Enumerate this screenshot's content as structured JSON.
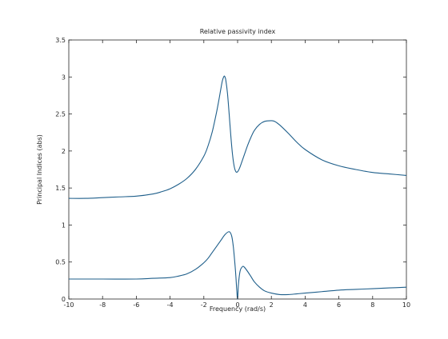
{
  "chart_data": {
    "type": "line",
    "title": "Relative passivity index",
    "xlabel": "Frequency (rad/s)",
    "ylabel": "Principal Indices (abs)",
    "xlim": [
      -10,
      10
    ],
    "ylim": [
      0,
      3.5
    ],
    "xticks": [
      -10,
      -8,
      -6,
      -4,
      -2,
      0,
      2,
      4,
      6,
      8,
      10
    ],
    "yticks": [
      0,
      0.5,
      1,
      1.5,
      2,
      2.5,
      3,
      3.5
    ],
    "xtick_labels": [
      "-10",
      "-8",
      "-6",
      "-4",
      "-2",
      "0",
      "2",
      "4",
      "6",
      "8",
      "10"
    ],
    "ytick_labels": [
      "0",
      "0.5",
      "1",
      "1.5",
      "2",
      "2.5",
      "3",
      "3.5"
    ],
    "grid": false,
    "line_color": "#1f5f8b",
    "series": [
      {
        "x": [
          -10,
          -9,
          -8,
          -7,
          -6,
          -5,
          -4.5,
          -4,
          -3.5,
          -3,
          -2.5,
          -2,
          -1.75,
          -1.5,
          -1.25,
          -1.1,
          -1,
          -0.9,
          -0.8,
          -0.75,
          -0.7,
          -0.6,
          -0.5,
          -0.4,
          -0.3,
          -0.2,
          -0.1,
          0,
          0.1,
          0.2,
          0.4,
          0.6,
          0.8,
          1,
          1.3,
          1.6,
          2,
          2.2,
          2.5,
          3,
          3.5,
          4,
          5,
          6,
          7,
          8,
          9,
          10
        ],
        "y": [
          1.36,
          1.36,
          1.37,
          1.38,
          1.39,
          1.42,
          1.45,
          1.49,
          1.55,
          1.63,
          1.75,
          1.93,
          2.07,
          2.26,
          2.52,
          2.7,
          2.83,
          2.95,
          3.01,
          3.0,
          2.96,
          2.78,
          2.5,
          2.2,
          1.95,
          1.79,
          1.72,
          1.72,
          1.76,
          1.82,
          1.95,
          2.08,
          2.19,
          2.28,
          2.36,
          2.4,
          2.41,
          2.4,
          2.35,
          2.24,
          2.12,
          2.02,
          1.88,
          1.8,
          1.75,
          1.71,
          1.69,
          1.67
        ]
      },
      {
        "x": [
          -10,
          -8,
          -6,
          -5,
          -4,
          -3.5,
          -3,
          -2.5,
          -2,
          -1.75,
          -1.5,
          -1.25,
          -1,
          -0.75,
          -0.5,
          -0.35,
          -0.25,
          -0.15,
          -0.1,
          -0.05,
          0,
          0.05,
          0.15,
          0.3,
          0.4,
          0.6,
          0.8,
          1,
          1.3,
          1.6,
          2,
          2.5,
          3,
          3.5,
          4,
          5,
          6,
          7,
          8,
          9,
          10
        ],
        "y": [
          0.27,
          0.27,
          0.27,
          0.28,
          0.29,
          0.31,
          0.34,
          0.4,
          0.49,
          0.55,
          0.63,
          0.71,
          0.79,
          0.87,
          0.91,
          0.85,
          0.7,
          0.45,
          0.3,
          0.12,
          0.0,
          0.2,
          0.38,
          0.44,
          0.43,
          0.37,
          0.3,
          0.23,
          0.16,
          0.11,
          0.08,
          0.06,
          0.06,
          0.07,
          0.08,
          0.1,
          0.12,
          0.13,
          0.14,
          0.15,
          0.16
        ]
      }
    ]
  }
}
